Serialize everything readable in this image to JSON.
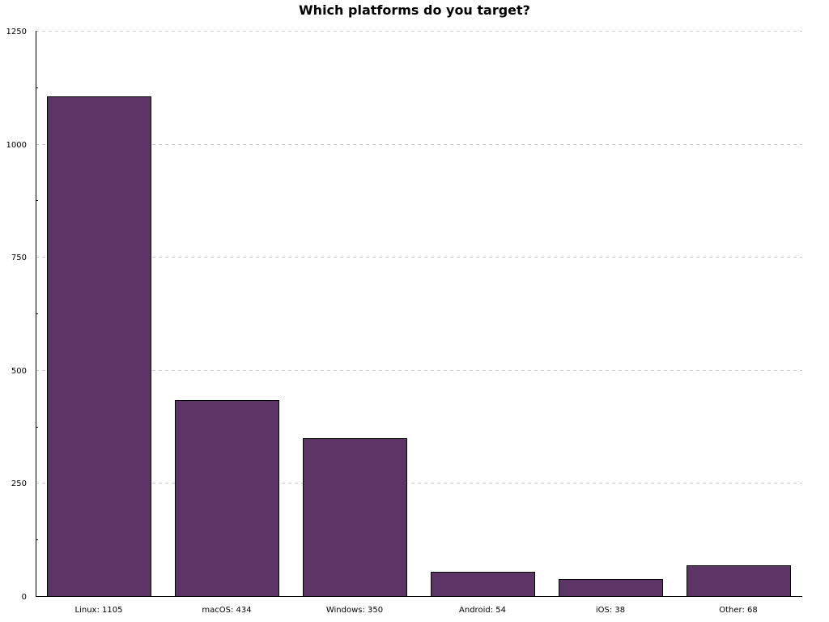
{
  "chart_data": {
    "type": "bar",
    "title": "Which platforms do you target?",
    "xlabel": "",
    "ylabel": "",
    "categories": [
      "Linux: 1105",
      "macOS: 434",
      "Windows: 350",
      "Android: 54",
      "iOS: 38",
      "Other: 68"
    ],
    "values": [
      1105,
      434,
      350,
      54,
      38,
      68
    ],
    "ylim": [
      0,
      1250
    ],
    "yticks": [
      0,
      250,
      500,
      750,
      1000,
      1250
    ],
    "grid": true,
    "legend": "none",
    "colors": {
      "bar": "#5c3566",
      "grid": "#c8c8c8",
      "axis": "#000000"
    }
  }
}
